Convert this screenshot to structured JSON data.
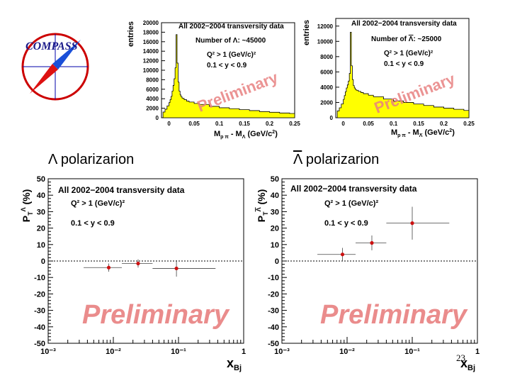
{
  "logo": {
    "text": "COMPASS"
  },
  "section_titles": {
    "left": "Λ polarizarion",
    "right_symbol": "Λ",
    "right_rest": " polarizarion"
  },
  "page_number": "23",
  "chart_data": [
    {
      "id": "lambda-mass",
      "type": "histogram",
      "title": "All 2002−2004 transversity data",
      "ylabel": "entries",
      "xlabel_main": "M",
      "xlabel_parts": [
        "p π",
        " - M",
        "Λ",
        " (GeV/c",
        "2",
        ")"
      ],
      "xlim": [
        -0.015,
        0.25
      ],
      "ylim": [
        0,
        20000
      ],
      "xticks": [
        0,
        0.05,
        0.1,
        0.15,
        0.2,
        0.25
      ],
      "xtick_labels": [
        "0",
        "0.05",
        "0.1",
        "0.15",
        "0.2",
        "0.25"
      ],
      "yticks": [
        0,
        2000,
        4000,
        6000,
        8000,
        10000,
        12000,
        14000,
        16000,
        18000,
        20000
      ],
      "annotations": {
        "count_prefix": "Number of ",
        "count_symbol": "Λ",
        "count_suffix": ": ~45000",
        "q2": "Q² > 1 (GeV/c)²",
        "y": "0.1 < y < 0.9"
      },
      "watermark": "Preliminary",
      "color": "#ffff00",
      "x": [
        -0.012,
        -0.008,
        -0.004,
        0.0,
        0.002,
        0.004,
        0.006,
        0.008,
        0.01,
        0.012,
        0.014,
        0.016,
        0.018,
        0.02,
        0.022,
        0.024,
        0.026,
        0.03,
        0.035,
        0.04,
        0.05,
        0.06,
        0.08,
        0.1,
        0.12,
        0.14,
        0.16,
        0.18,
        0.2,
        0.22,
        0.24,
        0.25
      ],
      "y": [
        1200,
        1800,
        2500,
        3200,
        3800,
        4500,
        5600,
        6800,
        8200,
        10500,
        17500,
        11500,
        7500,
        5600,
        4800,
        4400,
        4100,
        3800,
        3500,
        3300,
        3000,
        2800,
        2400,
        2100,
        1900,
        1700,
        1500,
        1300,
        1150,
        1000,
        900,
        850
      ]
    },
    {
      "id": "antilambda-mass",
      "type": "histogram",
      "title": "All 2002−2004 transversity data",
      "ylabel": "entries",
      "xlabel_main": "M",
      "xlabel_parts": [
        "p π",
        " - M",
        "Λ",
        " (GeV/c",
        "2",
        ")"
      ],
      "xlim": [
        -0.015,
        0.25
      ],
      "ylim": [
        0,
        13000
      ],
      "xticks": [
        0,
        0.05,
        0.1,
        0.15,
        0.2,
        0.25
      ],
      "xtick_labels": [
        "0",
        "0.05",
        "0.1",
        "0.15",
        "0.2",
        "0.25"
      ],
      "yticks": [
        0,
        2000,
        4000,
        6000,
        8000,
        10000,
        12000
      ],
      "annotations": {
        "count_prefix": "Number of ",
        "count_symbol": "Λ",
        "count_suffix": ": ~25000",
        "q2": "Q² > 1 (GeV/c)²",
        "y": "0.1 < y < 0.9"
      },
      "watermark": "Preliminary",
      "color": "#ffff00",
      "x": [
        -0.012,
        -0.008,
        -0.004,
        0.0,
        0.002,
        0.004,
        0.006,
        0.008,
        0.01,
        0.012,
        0.014,
        0.016,
        0.018,
        0.02,
        0.022,
        0.024,
        0.026,
        0.03,
        0.035,
        0.04,
        0.05,
        0.06,
        0.08,
        0.1,
        0.12,
        0.14,
        0.16,
        0.18,
        0.2,
        0.22,
        0.24,
        0.25
      ],
      "y": [
        900,
        1300,
        1800,
        2400,
        2900,
        3400,
        3900,
        4300,
        4800,
        5800,
        11200,
        6800,
        5000,
        4200,
        3900,
        3700,
        3600,
        3450,
        3300,
        3150,
        2950,
        2750,
        2450,
        2200,
        2000,
        1800,
        1600,
        1400,
        1250,
        1100,
        950,
        900
      ]
    },
    {
      "id": "lambda-polarization",
      "type": "scatter",
      "title": "All 2002−2004 transversity data",
      "ylabel": "P",
      "xlabel": "x",
      "x_scale": "log",
      "xlim": [
        0.001,
        1
      ],
      "ylim": [
        -50,
        50
      ],
      "yticks": [
        -50,
        -40,
        -30,
        -20,
        -10,
        0,
        10,
        20,
        30,
        40,
        50
      ],
      "xtick_labels": [
        "10⁻³",
        "10⁻²",
        "10⁻¹",
        "1"
      ],
      "annotations": {
        "q2": "Q² > 1 (GeV/c)²",
        "y": "0.1 < y < 0.9"
      },
      "watermark": "Preliminary",
      "points": [
        {
          "x": 0.0085,
          "y": -4,
          "xlo": 0.0035,
          "xhi": 0.0135,
          "err": 2.5
        },
        {
          "x": 0.024,
          "y": -1.5,
          "xlo": 0.0135,
          "xhi": 0.04,
          "err": 2.5
        },
        {
          "x": 0.093,
          "y": -4.5,
          "xlo": 0.04,
          "xhi": 0.37,
          "err": 5
        }
      ]
    },
    {
      "id": "antilambda-polarization",
      "type": "scatter",
      "title": "All 2002−2004 transversity data",
      "ylabel": "P",
      "xlabel": "x",
      "x_scale": "log",
      "xlim": [
        0.001,
        1
      ],
      "ylim": [
        -50,
        50
      ],
      "yticks": [
        -50,
        -40,
        -30,
        -20,
        -10,
        0,
        10,
        20,
        30,
        40,
        50
      ],
      "xtick_labels": [
        "10⁻³",
        "10⁻²",
        "10⁻¹",
        "1"
      ],
      "annotations": {
        "q2": "Q² > 1 (GeV/c)²",
        "y": "0.1 < y < 0.9"
      },
      "watermark": "Preliminary",
      "points": [
        {
          "x": 0.0085,
          "y": 4,
          "xlo": 0.0035,
          "xhi": 0.0135,
          "err": 4
        },
        {
          "x": 0.024,
          "y": 11,
          "xlo": 0.0135,
          "xhi": 0.04,
          "err": 4.5
        },
        {
          "x": 0.1,
          "y": 23,
          "xlo": 0.04,
          "xhi": 0.37,
          "err": 10
        }
      ]
    }
  ]
}
